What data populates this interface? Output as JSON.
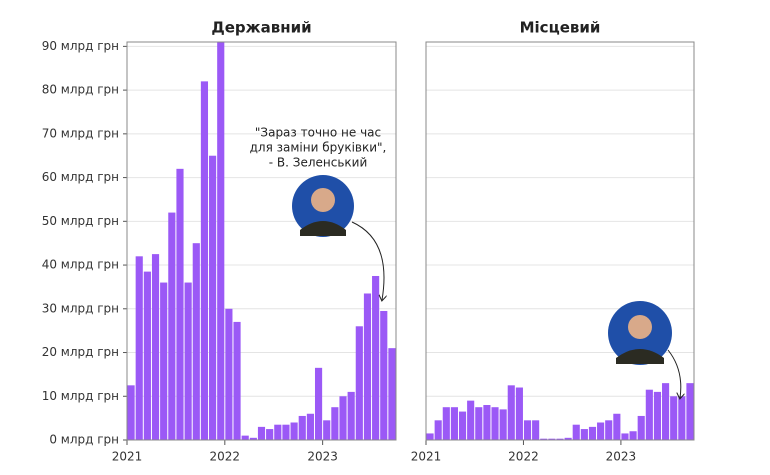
{
  "chart_data": [
    {
      "type": "bar",
      "title": "Державний",
      "color": "#9b59f6",
      "categories": [
        "2021",
        null,
        null,
        null,
        null,
        null,
        null,
        null,
        null,
        null,
        null,
        null,
        "2022",
        null,
        null,
        null,
        null,
        null,
        null,
        null,
        null,
        null,
        null,
        null,
        "2023",
        null,
        null,
        null,
        null,
        null,
        null,
        null,
        null
      ],
      "values": [
        12.5,
        42,
        38.5,
        42.5,
        36,
        52,
        62,
        36,
        45,
        82,
        65,
        91,
        30,
        27,
        1,
        0.5,
        3,
        2.5,
        3.5,
        3.5,
        4,
        5.5,
        6,
        16.5,
        4.5,
        7.5,
        10,
        11,
        26,
        33.5,
        37.5,
        29.5,
        21
      ],
      "ylim": [
        0,
        91
      ],
      "yticks": [
        {
          "value": 0,
          "label": "0 млрд грн"
        },
        {
          "value": 10,
          "label": "10 млрд грн"
        },
        {
          "value": 20,
          "label": "20 млрд грн"
        },
        {
          "value": 30,
          "label": "30 млрд грн"
        },
        {
          "value": 40,
          "label": "40 млрд грн"
        },
        {
          "value": 50,
          "label": "50 млрд грн"
        },
        {
          "value": 60,
          "label": "60 млрд грн"
        },
        {
          "value": 70,
          "label": "70 млрд грн"
        },
        {
          "value": 80,
          "label": "80 млрд грн"
        },
        {
          "value": 90,
          "label": "90 млрд грн"
        }
      ],
      "grid": true,
      "annotation": [
        "\"Зараз точно не час",
        "для заміни бруківки\",",
        "- В. Зеленський"
      ]
    },
    {
      "type": "bar",
      "title": "Місцевий",
      "color": "#9b59f6",
      "categories": [
        "2021",
        null,
        null,
        null,
        null,
        null,
        null,
        null,
        null,
        null,
        null,
        null,
        "2022",
        null,
        null,
        null,
        null,
        null,
        null,
        null,
        null,
        null,
        null,
        null,
        "2023",
        null,
        null,
        null,
        null,
        null,
        null,
        null,
        null
      ],
      "values": [
        1.5,
        4.5,
        7.5,
        7.5,
        6.5,
        9,
        7.5,
        8,
        7.5,
        7,
        12.5,
        12,
        4.5,
        4.5,
        0.3,
        0.3,
        0.3,
        0.5,
        3.5,
        2.5,
        3,
        4,
        4.5,
        6,
        1.5,
        2,
        5.5,
        11.5,
        11,
        13,
        10,
        10,
        13
      ],
      "ylim": [
        0,
        91
      ],
      "yticks": [
        0,
        10,
        20,
        30,
        40,
        50,
        60,
        70,
        80,
        90
      ],
      "grid": true
    }
  ]
}
